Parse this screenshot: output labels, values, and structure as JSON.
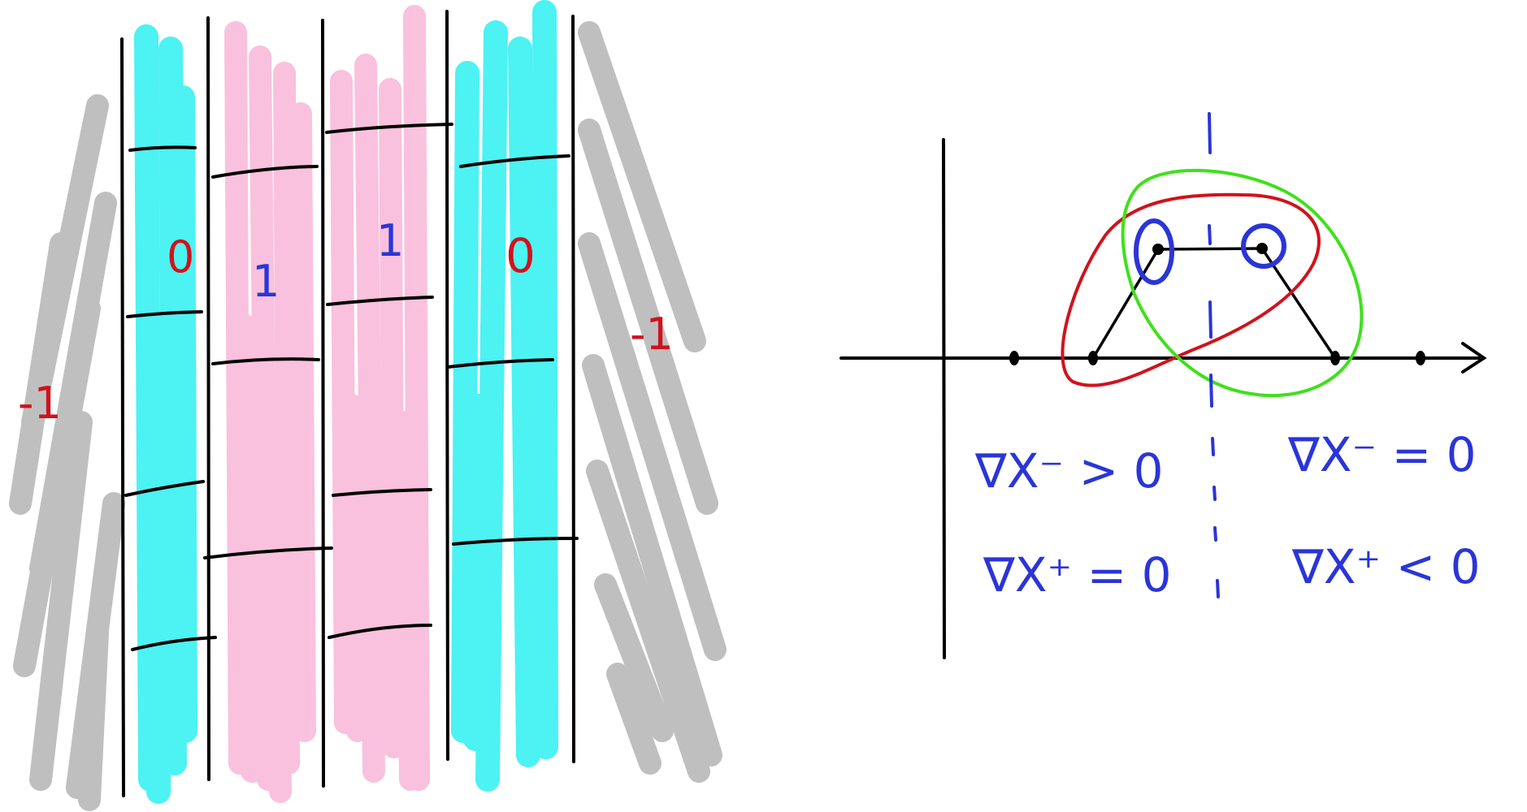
{
  "colors": {
    "cyan": "#2ef0f0",
    "pink": "#f7a8cf",
    "gray": "#b4b4b4",
    "black": "#000000",
    "red": "#d1121c",
    "blue": "#2a35d8",
    "green": "#3fe01a"
  },
  "left_panel": {
    "outer_left_label": "-1",
    "outer_right_label": "-1",
    "strip_labels": [
      "0",
      "1",
      "1",
      "0"
    ]
  },
  "right_panel": {
    "eq_left_top": "∇X⁻ > 0",
    "eq_left_bottom": "∇X⁺ = 0",
    "eq_right_top": "∇X⁻ = 0",
    "eq_right_bottom": "∇X⁺ < 0"
  }
}
